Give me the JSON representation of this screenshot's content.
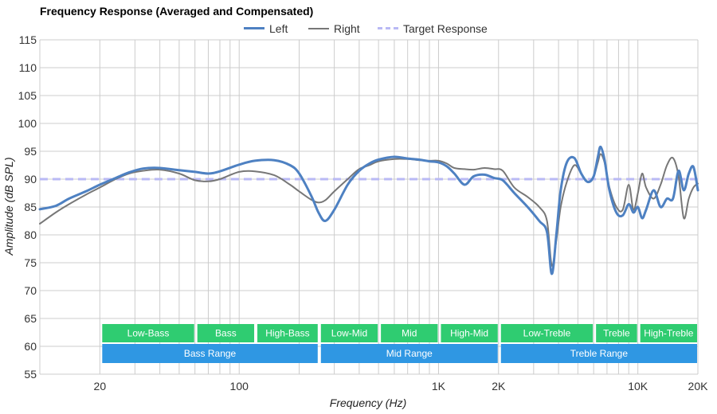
{
  "chart_data": {
    "type": "line",
    "title": "Frequency Response (Averaged and Compensated)",
    "xlabel": "Frequency (Hz)",
    "ylabel": "Amplitude (dB SPL)",
    "x_scale": "log",
    "xlim": [
      10,
      20000
    ],
    "ylim": [
      55,
      115
    ],
    "y_ticks": [
      55,
      60,
      65,
      70,
      75,
      80,
      85,
      90,
      95,
      100,
      105,
      110,
      115
    ],
    "x_ticks": [
      {
        "value": 20,
        "label": "20"
      },
      {
        "value": 100,
        "label": "100"
      },
      {
        "value": 1000,
        "label": "1K"
      },
      {
        "value": 2000,
        "label": "2K"
      },
      {
        "value": 10000,
        "label": "10K"
      },
      {
        "value": 20000,
        "label": "20K"
      }
    ],
    "grid": true,
    "legend_position": "top-center",
    "series": [
      {
        "name": "Left",
        "color": "#4e81c2",
        "style": "solid",
        "points": [
          [
            10,
            84.6
          ],
          [
            12,
            85.2
          ],
          [
            14,
            86.5
          ],
          [
            17,
            87.8
          ],
          [
            20,
            89.0
          ],
          [
            24,
            90.2
          ],
          [
            28,
            91.2
          ],
          [
            33,
            91.9
          ],
          [
            40,
            92.0
          ],
          [
            50,
            91.6
          ],
          [
            60,
            91.3
          ],
          [
            70,
            91.0
          ],
          [
            80,
            91.4
          ],
          [
            100,
            92.6
          ],
          [
            120,
            93.3
          ],
          [
            150,
            93.4
          ],
          [
            180,
            92.5
          ],
          [
            200,
            91.0
          ],
          [
            230,
            87.0
          ],
          [
            250,
            84.0
          ],
          [
            270,
            82.5
          ],
          [
            300,
            84.5
          ],
          [
            350,
            89.0
          ],
          [
            400,
            91.5
          ],
          [
            450,
            92.8
          ],
          [
            500,
            93.5
          ],
          [
            600,
            94.0
          ],
          [
            700,
            93.7
          ],
          [
            800,
            93.5
          ],
          [
            900,
            93.2
          ],
          [
            1000,
            93.0
          ],
          [
            1100,
            92.3
          ],
          [
            1200,
            91.0
          ],
          [
            1350,
            89.0
          ],
          [
            1500,
            90.5
          ],
          [
            1700,
            90.8
          ],
          [
            1900,
            90.2
          ],
          [
            2100,
            89.8
          ],
          [
            2400,
            87.5
          ],
          [
            2800,
            85.0
          ],
          [
            3200,
            82.5
          ],
          [
            3500,
            80.5
          ],
          [
            3700,
            73.0
          ],
          [
            3900,
            80.0
          ],
          [
            4100,
            88.0
          ],
          [
            4400,
            93.0
          ],
          [
            4800,
            93.8
          ],
          [
            5200,
            91.0
          ],
          [
            5600,
            89.5
          ],
          [
            6000,
            90.5
          ],
          [
            6300,
            94.0
          ],
          [
            6500,
            95.8
          ],
          [
            6800,
            93.5
          ],
          [
            7200,
            88.0
          ],
          [
            7800,
            84.0
          ],
          [
            8400,
            83.5
          ],
          [
            9000,
            85.5
          ],
          [
            9500,
            84.0
          ],
          [
            10000,
            85.0
          ],
          [
            10500,
            83.0
          ],
          [
            11000,
            84.5
          ],
          [
            12000,
            88.0
          ],
          [
            13000,
            85.0
          ],
          [
            14000,
            86.5
          ],
          [
            15000,
            86.5
          ],
          [
            16000,
            91.5
          ],
          [
            17000,
            88.0
          ],
          [
            18000,
            91.0
          ],
          [
            19000,
            92.2
          ],
          [
            20000,
            88.0
          ]
        ]
      },
      {
        "name": "Right",
        "color": "#777777",
        "style": "solid",
        "points": [
          [
            10,
            82.0
          ],
          [
            12,
            84.0
          ],
          [
            14,
            85.5
          ],
          [
            17,
            87.2
          ],
          [
            20,
            88.5
          ],
          [
            24,
            90.0
          ],
          [
            28,
            91.0
          ],
          [
            33,
            91.5
          ],
          [
            40,
            91.7
          ],
          [
            50,
            91.0
          ],
          [
            60,
            89.8
          ],
          [
            70,
            89.6
          ],
          [
            80,
            90.0
          ],
          [
            100,
            91.3
          ],
          [
            120,
            91.4
          ],
          [
            150,
            90.7
          ],
          [
            180,
            89.0
          ],
          [
            200,
            87.8
          ],
          [
            230,
            86.3
          ],
          [
            250,
            85.8
          ],
          [
            270,
            86.2
          ],
          [
            300,
            87.8
          ],
          [
            350,
            90.0
          ],
          [
            400,
            91.8
          ],
          [
            450,
            92.5
          ],
          [
            500,
            93.2
          ],
          [
            600,
            93.6
          ],
          [
            700,
            93.6
          ],
          [
            800,
            93.4
          ],
          [
            900,
            93.3
          ],
          [
            1000,
            93.3
          ],
          [
            1100,
            92.8
          ],
          [
            1200,
            92.0
          ],
          [
            1350,
            91.8
          ],
          [
            1500,
            91.7
          ],
          [
            1700,
            92.0
          ],
          [
            1900,
            91.8
          ],
          [
            2100,
            91.5
          ],
          [
            2400,
            88.5
          ],
          [
            2800,
            86.8
          ],
          [
            3200,
            85.0
          ],
          [
            3500,
            82.5
          ],
          [
            3700,
            74.5
          ],
          [
            3900,
            79.0
          ],
          [
            4100,
            85.0
          ],
          [
            4400,
            89.5
          ],
          [
            4800,
            92.5
          ],
          [
            5200,
            91.0
          ],
          [
            5600,
            89.5
          ],
          [
            6000,
            90.5
          ],
          [
            6300,
            93.0
          ],
          [
            6500,
            94.5
          ],
          [
            6800,
            93.0
          ],
          [
            7200,
            88.5
          ],
          [
            7800,
            85.0
          ],
          [
            8400,
            84.5
          ],
          [
            9000,
            89.0
          ],
          [
            9500,
            84.5
          ],
          [
            10000,
            87.5
          ],
          [
            10500,
            91.0
          ],
          [
            11000,
            88.5
          ],
          [
            12000,
            86.5
          ],
          [
            13000,
            89.0
          ],
          [
            14000,
            92.5
          ],
          [
            15000,
            93.8
          ],
          [
            16000,
            90.5
          ],
          [
            17000,
            83.0
          ],
          [
            18000,
            86.5
          ],
          [
            19000,
            88.5
          ],
          [
            20000,
            89.2
          ]
        ]
      },
      {
        "name": "Target Response",
        "color": "#b9b9f5",
        "style": "dashed",
        "points": [
          [
            10,
            90
          ],
          [
            20000,
            90
          ]
        ]
      }
    ],
    "range_bands": {
      "color": "#2fcc71",
      "items": [
        {
          "label": "Low-Bass",
          "from": 20,
          "to": 60
        },
        {
          "label": "Bass",
          "from": 60,
          "to": 120
        },
        {
          "label": "High-Bass",
          "from": 120,
          "to": 250
        },
        {
          "label": "Low-Mid",
          "from": 250,
          "to": 500
        },
        {
          "label": "Mid",
          "from": 500,
          "to": 1000
        },
        {
          "label": "High-Mid",
          "from": 1000,
          "to": 2000
        },
        {
          "label": "Low-Treble",
          "from": 2000,
          "to": 6000
        },
        {
          "label": "Treble",
          "from": 6000,
          "to": 10000
        },
        {
          "label": "High-Treble",
          "from": 10000,
          "to": 20000
        }
      ]
    },
    "range_groups": {
      "color": "#2f97e3",
      "items": [
        {
          "label": "Bass Range",
          "from": 20,
          "to": 250
        },
        {
          "label": "Mid Range",
          "from": 250,
          "to": 2000
        },
        {
          "label": "Treble Range",
          "from": 2000,
          "to": 20000
        }
      ]
    }
  }
}
